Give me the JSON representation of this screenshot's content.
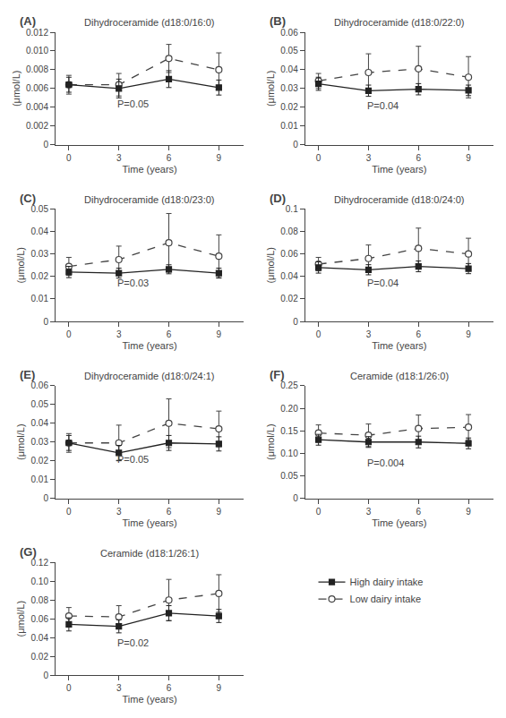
{
  "chart_data": [
    {
      "type": "line",
      "title": "Dihydroceramide (d18:0/16:0)",
      "xlabel": "Time (years)",
      "ylabel": "(μmol/L)",
      "x": [
        0,
        3,
        6,
        9
      ],
      "xlim": [
        -0.8,
        10.5
      ],
      "xticks": [
        0,
        3,
        6,
        9
      ],
      "ylim": [
        0,
        0.012
      ],
      "yticks": [
        0,
        0.002,
        0.004,
        0.006,
        0.008,
        {
          "value": 0.01,
          "label": "0.010"
        },
        0.012
      ],
      "grid": false,
      "annotations": [
        {
          "text": "(A)"
        },
        {
          "text": "P=0.05",
          "x": 2.8,
          "y": 0.0036
        }
      ],
      "series": [
        {
          "name": "Low dairy intake",
          "color": "#444444",
          "marker": "circle-open",
          "line_style": "dashed",
          "values": [
            0.0064,
            0.0064,
            0.0092,
            0.008
          ],
          "error": [
            0.001,
            0.0012,
            0.0015,
            0.0018
          ]
        },
        {
          "name": "High dairy intake",
          "color": "#222222",
          "marker": "square",
          "line_style": "solid",
          "values": [
            0.0064,
            0.006,
            0.007,
            0.0061
          ],
          "error": [
            0.0008,
            0.001,
            0.0009,
            0.0008
          ]
        }
      ]
    },
    {
      "type": "line",
      "title": "Dihydroceramide (d18:0/22:0)",
      "xlabel": "Time (years)",
      "ylabel": "(μmol/L)",
      "x": [
        0,
        3,
        6,
        9
      ],
      "xlim": [
        -0.8,
        10.5
      ],
      "xticks": [
        0,
        3,
        6,
        9
      ],
      "ylim": [
        0,
        0.06
      ],
      "yticks": [
        0,
        0.01,
        0.02,
        0.03,
        0.04,
        0.05,
        0.06
      ],
      "grid": false,
      "annotations": [
        {
          "text": "(B)"
        },
        {
          "text": "P=0.04",
          "x": 2.8,
          "y": 0.0168
        }
      ],
      "series": [
        {
          "name": "Low dairy intake",
          "color": "#444444",
          "marker": "circle-open",
          "line_style": "dashed",
          "values": [
            0.034,
            0.0385,
            0.0405,
            0.036
          ],
          "error": [
            0.004,
            0.01,
            0.012,
            0.011
          ]
        },
        {
          "name": "High dairy intake",
          "color": "#222222",
          "marker": "square",
          "line_style": "solid",
          "values": [
            0.0325,
            0.0288,
            0.0296,
            0.029
          ],
          "error": [
            0.0035,
            0.003,
            0.003,
            0.0028
          ]
        }
      ]
    },
    {
      "type": "line",
      "title": "Dihydroceramide (d18:0/23:0)",
      "xlabel": "Time (years)",
      "ylabel": "(μmol/L)",
      "x": [
        0,
        3,
        6,
        9
      ],
      "xlim": [
        -0.8,
        10.5
      ],
      "xticks": [
        0,
        3,
        6,
        9
      ],
      "ylim": [
        0,
        0.05
      ],
      "yticks": [
        0,
        0.01,
        0.02,
        0.03,
        0.04,
        0.05
      ],
      "grid": false,
      "annotations": [
        {
          "text": "(C)"
        },
        {
          "text": "P=0.03",
          "x": 2.8,
          "y": 0.014
        }
      ],
      "series": [
        {
          "name": "Low dairy intake",
          "color": "#444444",
          "marker": "circle-open",
          "line_style": "dashed",
          "values": [
            0.0245,
            0.0275,
            0.035,
            0.029
          ],
          "error": [
            0.004,
            0.006,
            0.013,
            0.0095
          ]
        },
        {
          "name": "High dairy intake",
          "color": "#222222",
          "marker": "square",
          "line_style": "solid",
          "values": [
            0.022,
            0.0215,
            0.0232,
            0.0215
          ],
          "error": [
            0.0025,
            0.0022,
            0.002,
            0.0022
          ]
        }
      ]
    },
    {
      "type": "line",
      "title": "Dihydroceramide (d18:0/24:0)",
      "xlabel": "Time (years)",
      "ylabel": "(μmol/L)",
      "x": [
        0,
        3,
        6,
        9
      ],
      "xlim": [
        -0.8,
        10.5
      ],
      "xticks": [
        0,
        3,
        6,
        9
      ],
      "ylim": [
        0,
        0.1
      ],
      "yticks": [
        0,
        0.02,
        0.04,
        0.06,
        0.08,
        0.1
      ],
      "grid": false,
      "annotations": [
        {
          "text": "(D)"
        },
        {
          "text": "P=0.04",
          "x": 2.8,
          "y": 0.028
        }
      ],
      "series": [
        {
          "name": "Low dairy intake",
          "color": "#444444",
          "marker": "circle-open",
          "line_style": "dashed",
          "values": [
            0.051,
            0.056,
            0.065,
            0.06
          ],
          "error": [
            0.006,
            0.012,
            0.018,
            0.014
          ]
        },
        {
          "name": "High dairy intake",
          "color": "#222222",
          "marker": "square",
          "line_style": "solid",
          "values": [
            0.048,
            0.046,
            0.049,
            0.047
          ],
          "error": [
            0.005,
            0.0045,
            0.0048,
            0.0045
          ]
        }
      ]
    },
    {
      "type": "line",
      "title": "Dihydroceramide (d18:0/24:1)",
      "xlabel": "Time (years)",
      "ylabel": "(μmol/L)",
      "x": [
        0,
        3,
        6,
        9
      ],
      "xlim": [
        -0.8,
        10.5
      ],
      "xticks": [
        0,
        3,
        6,
        9
      ],
      "ylim": [
        0,
        0.06
      ],
      "yticks": [
        0,
        0.01,
        0.02,
        0.03,
        0.04,
        0.05,
        0.06
      ],
      "grid": false,
      "annotations": [
        {
          "text": "(E)"
        },
        {
          "text": "P=0.05",
          "x": 2.8,
          "y": 0.0168
        }
      ],
      "series": [
        {
          "name": "Low dairy intake",
          "color": "#444444",
          "marker": "circle-open",
          "line_style": "dashed",
          "values": [
            0.0295,
            0.0295,
            0.04,
            0.037
          ],
          "error": [
            0.005,
            0.0095,
            0.013,
            0.0095
          ]
        },
        {
          "name": "High dairy intake",
          "color": "#222222",
          "marker": "square",
          "line_style": "solid",
          "values": [
            0.0295,
            0.0242,
            0.0295,
            0.029
          ],
          "error": [
            0.004,
            0.004,
            0.004,
            0.0038
          ]
        }
      ]
    },
    {
      "type": "line",
      "title": "Ceramide (d18:1/26:0)",
      "xlabel": "Time (years)",
      "ylabel": "(μmol/L)",
      "x": [
        0,
        3,
        6,
        9
      ],
      "xlim": [
        -0.8,
        10.5
      ],
      "xticks": [
        0,
        3,
        6,
        9
      ],
      "ylim": [
        0,
        0.25
      ],
      "yticks": [
        0,
        0.05,
        {
          "value": 0.1,
          "label": "0.10"
        },
        0.15,
        {
          "value": 0.2,
          "label": "0.20"
        },
        0.25
      ],
      "grid": false,
      "annotations": [
        {
          "text": "(F)"
        },
        {
          "text": "P=0.004",
          "x": 2.8,
          "y": 0.0625
        }
      ],
      "series": [
        {
          "name": "Low dairy intake",
          "color": "#444444",
          "marker": "circle-open",
          "line_style": "dashed",
          "values": [
            0.145,
            0.14,
            0.155,
            0.158
          ],
          "error": [
            0.018,
            0.025,
            0.03,
            0.028
          ]
        },
        {
          "name": "High dairy intake",
          "color": "#222222",
          "marker": "square",
          "line_style": "solid",
          "values": [
            0.13,
            0.125,
            0.125,
            0.122
          ],
          "error": [
            0.012,
            0.012,
            0.013,
            0.012
          ]
        }
      ]
    },
    {
      "type": "line",
      "title": "Ceramide (d18:1/26:1)",
      "xlabel": "Time (years)",
      "ylabel": "(μmol/L)",
      "x": [
        0,
        3,
        6,
        9
      ],
      "xlim": [
        -0.8,
        10.5
      ],
      "xticks": [
        0,
        3,
        6,
        9
      ],
      "ylim": [
        0,
        0.12
      ],
      "yticks": [
        0,
        0.02,
        0.04,
        0.06,
        0.08,
        {
          "value": 0.1,
          "label": "0.10"
        },
        0.12
      ],
      "grid": false,
      "annotations": [
        {
          "text": "(G)"
        },
        {
          "text": "P=0.02",
          "x": 2.8,
          "y": 0.0264
        }
      ],
      "series": [
        {
          "name": "Low dairy intake",
          "color": "#444444",
          "marker": "circle-open",
          "line_style": "dashed",
          "values": [
            0.063,
            0.062,
            0.08,
            0.087
          ],
          "error": [
            0.009,
            0.012,
            0.022,
            0.02
          ]
        },
        {
          "name": "High dairy intake",
          "color": "#222222",
          "marker": "square",
          "line_style": "solid",
          "values": [
            0.054,
            0.052,
            0.066,
            0.063
          ],
          "error": [
            0.007,
            0.007,
            0.008,
            0.007
          ]
        }
      ]
    }
  ]
}
